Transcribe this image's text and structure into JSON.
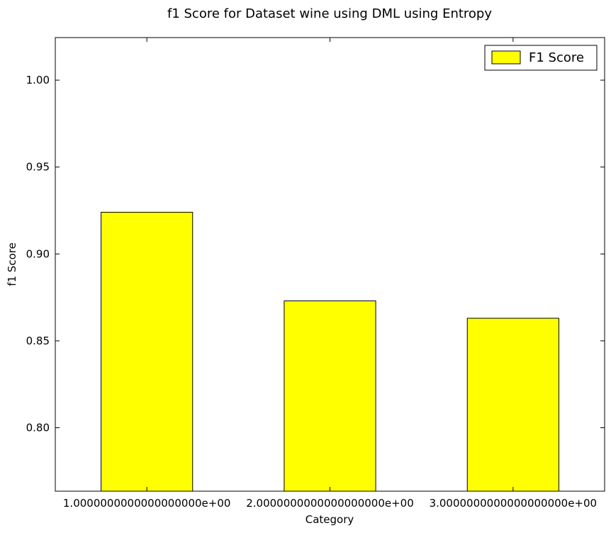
{
  "chart_data": {
    "type": "bar",
    "title": "f1 Score for Dataset wine using DML using Entropy",
    "xlabel": "Category",
    "ylabel": "f1 Score",
    "categories": [
      "1.0000000000000000000e+00",
      "2.0000000000000000000e+00",
      "3.0000000000000000000e+00"
    ],
    "series": [
      {
        "name": "F1 Score",
        "values": [
          0.924,
          0.873,
          0.863
        ],
        "color": "#ffff00"
      }
    ],
    "ylim": [
      0.7635,
      1.0245
    ],
    "yticks": [
      0.8,
      0.85,
      0.9,
      0.95,
      1.0
    ],
    "ytick_labels": [
      "0.80",
      "0.85",
      "0.90",
      "0.95",
      "1.00"
    ],
    "legend_position": "top-right",
    "grid": false
  }
}
